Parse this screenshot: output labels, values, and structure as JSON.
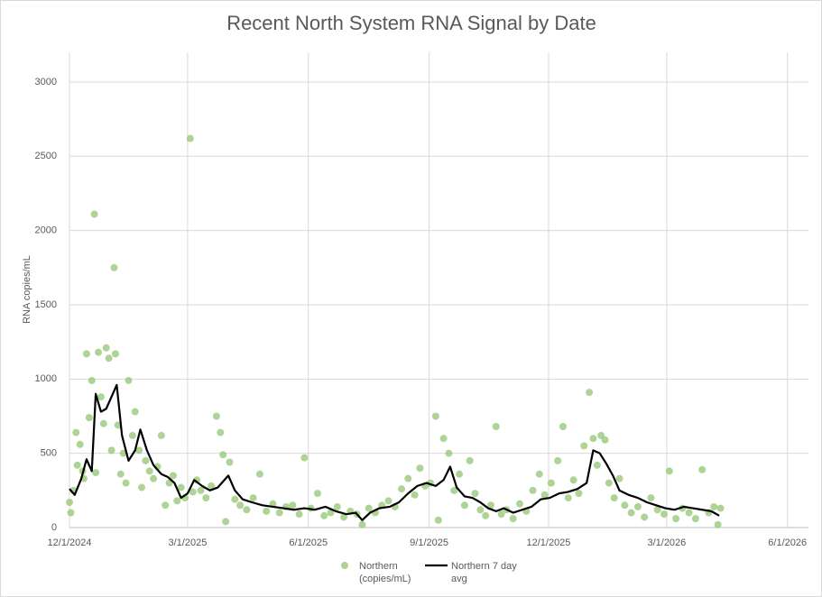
{
  "chart_data": {
    "type": "scatter",
    "title": "Recent North System RNA Signal by Date",
    "y_label": "RNA copies/mL",
    "xlim": [
      "12/1/2024",
      "6/17/2026"
    ],
    "xticks": [
      "12/1/2024",
      "3/1/2025",
      "6/1/2025",
      "9/1/2025",
      "12/1/2025",
      "3/1/2026",
      "6/1/2026"
    ],
    "ylim": [
      0,
      3200
    ],
    "yticks": [
      0,
      500,
      1000,
      1500,
      2000,
      2500,
      3000
    ],
    "grid": true,
    "series": [
      {
        "name": "Northern (copies/mL)",
        "type": "scatter",
        "color": "#93c572",
        "x": [
          "12/1/2024",
          "12/2/2024",
          "12/4/2024",
          "12/6/2024",
          "12/7/2024",
          "12/9/2024",
          "12/11/2024",
          "12/12/2024",
          "12/14/2024",
          "12/16/2024",
          "12/18/2024",
          "12/20/2024",
          "12/21/2024",
          "12/23/2024",
          "12/25/2024",
          "12/27/2024",
          "12/29/2024",
          "12/31/2024",
          "1/2/2025",
          "1/4/2025",
          "1/5/2025",
          "1/7/2025",
          "1/9/2025",
          "1/11/2025",
          "1/13/2025",
          "1/15/2025",
          "1/18/2025",
          "1/20/2025",
          "1/23/2025",
          "1/25/2025",
          "1/28/2025",
          "1/31/2025",
          "2/3/2025",
          "2/6/2025",
          "2/9/2025",
          "2/12/2025",
          "2/15/2025",
          "2/18/2025",
          "2/21/2025",
          "2/24/2025",
          "2/27/2025",
          "3/3/2025",
          "3/5/2025",
          "3/8/2025",
          "3/11/2025",
          "3/15/2025",
          "3/19/2025",
          "3/23/2025",
          "3/26/2025",
          "3/28/2025",
          "3/30/2025",
          "4/2/2025",
          "4/6/2025",
          "4/10/2025",
          "4/15/2025",
          "4/20/2025",
          "4/25/2025",
          "4/30/2025",
          "5/5/2025",
          "5/10/2025",
          "5/15/2025",
          "5/20/2025",
          "5/25/2025",
          "5/29/2025",
          "6/3/2025",
          "6/8/2025",
          "6/13/2025",
          "6/18/2025",
          "6/23/2025",
          "6/28/2025",
          "7/3/2025",
          "7/8/2025",
          "7/12/2025",
          "7/17/2025",
          "7/22/2025",
          "7/27/2025",
          "8/1/2025",
          "8/6/2025",
          "8/11/2025",
          "8/16/2025",
          "8/21/2025",
          "8/25/2025",
          "8/29/2025",
          "9/2/2025",
          "9/6/2025",
          "9/8/2025",
          "9/12/2025",
          "9/16/2025",
          "9/20/2025",
          "9/24/2025",
          "9/28/2025",
          "10/2/2025",
          "10/6/2025",
          "10/10/2025",
          "10/14/2025",
          "10/18/2025",
          "10/22/2025",
          "10/26/2025",
          "10/30/2025",
          "11/4/2025",
          "11/9/2025",
          "11/14/2025",
          "11/19/2025",
          "11/24/2025",
          "11/28/2025",
          "12/3/2025",
          "12/8/2025",
          "12/12/2025",
          "12/16/2025",
          "12/20/2025",
          "12/24/2025",
          "12/28/2025",
          "1/1/2026",
          "1/4/2026",
          "1/7/2026",
          "1/10/2026",
          "1/13/2026",
          "1/16/2026",
          "1/20/2026",
          "1/24/2026",
          "1/28/2026",
          "2/2/2026",
          "2/7/2026",
          "2/12/2026",
          "2/17/2026",
          "2/22/2026",
          "2/27/2026",
          "3/3/2026",
          "3/8/2026",
          "3/13/2026",
          "3/18/2026",
          "3/23/2026",
          "3/28/2026",
          "4/2/2026",
          "4/6/2026",
          "4/9/2026",
          "4/11/2026"
        ],
        "values": [
          170,
          100,
          250,
          640,
          420,
          560,
          380,
          330,
          1170,
          740,
          990,
          2110,
          370,
          1180,
          880,
          700,
          1210,
          1140,
          520,
          1750,
          1170,
          690,
          360,
          500,
          300,
          990,
          620,
          780,
          520,
          270,
          450,
          380,
          330,
          410,
          620,
          150,
          300,
          350,
          180,
          270,
          200,
          2620,
          240,
          320,
          250,
          200,
          280,
          750,
          640,
          490,
          40,
          440,
          190,
          150,
          120,
          200,
          360,
          110,
          160,
          100,
          140,
          150,
          90,
          470,
          130,
          230,
          80,
          100,
          140,
          70,
          110,
          90,
          20,
          130,
          100,
          150,
          180,
          140,
          260,
          330,
          220,
          400,
          280,
          300,
          750,
          50,
          600,
          500,
          250,
          360,
          150,
          450,
          230,
          120,
          80,
          150,
          680,
          90,
          120,
          60,
          160,
          110,
          250,
          360,
          220,
          300,
          450,
          680,
          200,
          320,
          230,
          550,
          910,
          600,
          420,
          620,
          590,
          300,
          200,
          330,
          150,
          100,
          140,
          70,
          200,
          120,
          90,
          380,
          60,
          130,
          100,
          60,
          390,
          100,
          140,
          20,
          130
        ]
      },
      {
        "name": "Northern 7 day avg",
        "type": "line",
        "color": "#000000",
        "x": [
          "12/1/2024",
          "12/5/2024",
          "12/10/2024",
          "12/14/2024",
          "12/18/2024",
          "12/21/2024",
          "12/25/2024",
          "12/29/2024",
          "1/2/2025",
          "1/6/2025",
          "1/10/2025",
          "1/15/2025",
          "1/20/2025",
          "1/24/2025",
          "1/29/2025",
          "2/3/2025",
          "2/9/2025",
          "2/14/2025",
          "2/19/2025",
          "2/24/2025",
          "3/1/2025",
          "3/6/2025",
          "3/12/2025",
          "3/18/2025",
          "3/24/2025",
          "4/1/2025",
          "4/6/2025",
          "4/12/2025",
          "4/19/2025",
          "4/27/2025",
          "5/5/2025",
          "5/13/2025",
          "5/21/2025",
          "5/29/2025",
          "6/6/2025",
          "6/14/2025",
          "6/22/2025",
          "6/30/2025",
          "7/7/2025",
          "7/12/2025",
          "7/18/2025",
          "7/25/2025",
          "8/2/2025",
          "8/9/2025",
          "8/16/2025",
          "8/23/2025",
          "8/30/2025",
          "9/6/2025",
          "9/12/2025",
          "9/17/2025",
          "9/22/2025",
          "9/28/2025",
          "10/4/2025",
          "10/10/2025",
          "10/16/2025",
          "10/22/2025",
          "10/28/2025",
          "11/4/2025",
          "11/11/2025",
          "11/18/2025",
          "11/25/2025",
          "12/2/2025",
          "12/9/2025",
          "12/16/2025",
          "12/23/2025",
          "12/30/2025",
          "1/4/2026",
          "1/9/2026",
          "1/14/2026",
          "1/19/2026",
          "1/24/2026",
          "1/31/2026",
          "2/7/2026",
          "2/14/2026",
          "2/21/2026",
          "2/28/2026",
          "3/7/2026",
          "3/14/2026",
          "3/21/2026",
          "3/28/2026",
          "4/4/2026",
          "4/10/2026"
        ],
        "values": [
          260,
          220,
          330,
          460,
          380,
          900,
          780,
          800,
          880,
          960,
          620,
          450,
          520,
          660,
          520,
          420,
          360,
          340,
          300,
          200,
          230,
          320,
          280,
          250,
          270,
          350,
          250,
          190,
          170,
          150,
          140,
          130,
          120,
          130,
          120,
          140,
          110,
          90,
          100,
          50,
          100,
          130,
          140,
          170,
          230,
          280,
          300,
          280,
          320,
          410,
          270,
          210,
          200,
          170,
          130,
          110,
          130,
          100,
          120,
          140,
          190,
          200,
          230,
          240,
          260,
          300,
          520,
          500,
          430,
          350,
          250,
          220,
          200,
          170,
          150,
          130,
          120,
          140,
          130,
          120,
          110,
          80
        ]
      }
    ]
  }
}
